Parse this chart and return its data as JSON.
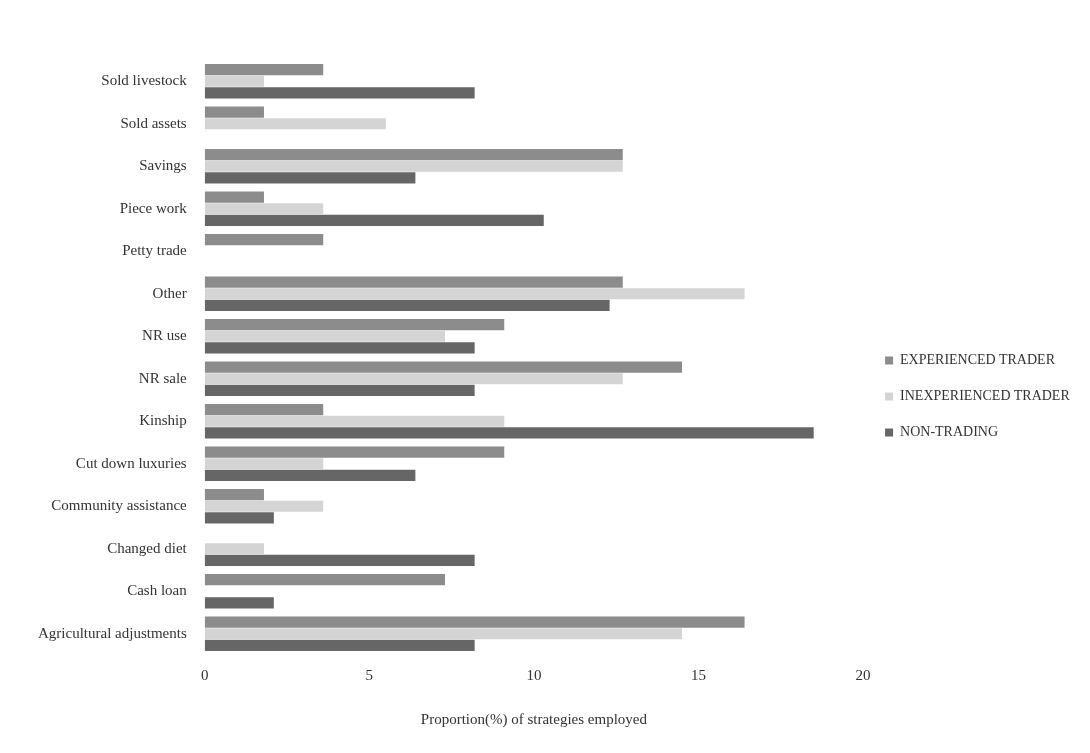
{
  "chart_data": {
    "type": "bar",
    "orientation": "horizontal",
    "xlabel": "Proportion(%) of strategies employed",
    "categories": [
      "Sold livestock",
      "Sold assets",
      "Savings",
      "Piece work",
      "Petty trade",
      "Other",
      "NR use",
      "NR sale",
      "Kinship",
      "Cut down luxuries",
      "Community assistance",
      "Changed diet",
      "Cash loan",
      "Agricultural adjustments"
    ],
    "series": [
      {
        "name": "EXPERIENCED TRADER",
        "color": "#8c8c8c",
        "values": [
          3.6,
          1.8,
          12.7,
          1.8,
          3.6,
          12.7,
          9.1,
          14.5,
          3.6,
          9.1,
          1.8,
          0,
          7.3,
          16.4
        ]
      },
      {
        "name": "INEXPERIENCED TRADER",
        "color": "#d4d4d4",
        "values": [
          1.8,
          5.5,
          12.7,
          3.6,
          0,
          16.4,
          7.3,
          12.7,
          9.1,
          3.6,
          3.6,
          1.8,
          0,
          14.5
        ]
      },
      {
        "name": "NON-TRADING",
        "color": "#666666",
        "values": [
          8.2,
          0,
          6.4,
          10.3,
          0,
          12.3,
          8.2,
          8.2,
          18.5,
          6.4,
          2.1,
          8.2,
          2.1,
          8.2
        ]
      }
    ],
    "xlim": [
      0,
      20
    ],
    "xticks": [
      0,
      5,
      10,
      15,
      20
    ],
    "grid": false,
    "legend": "right"
  }
}
